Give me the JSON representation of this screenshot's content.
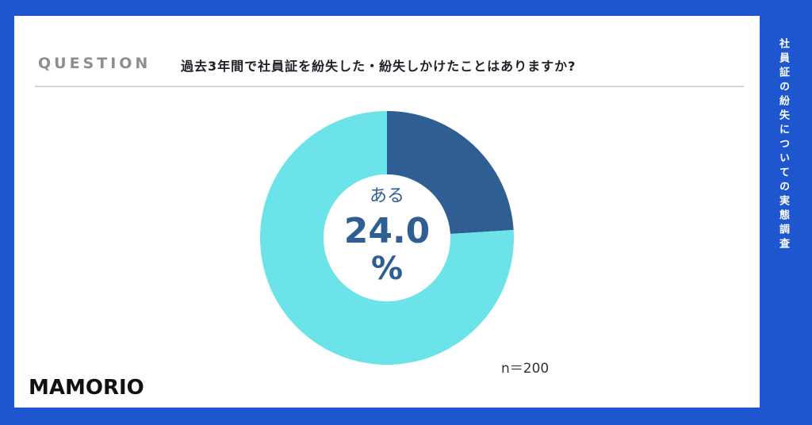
{
  "header": {
    "question_label": "QUESTION",
    "question_text": "過去3年間で社員証を紛失した・紛失しかけたことはありますか?"
  },
  "side_title": "社員証の紛失についての実態調査",
  "brand": "MAMORIO",
  "sample": "n＝200",
  "center": {
    "category": "ある",
    "value": "24.0",
    "unit": "%"
  },
  "colors": {
    "background": "#1e56d0",
    "slice_yes": "#2f5e93",
    "slice_no": "#6be3e8"
  },
  "chart_data": {
    "type": "pie",
    "donut": true,
    "categories": [
      "ある",
      ""
    ],
    "values": [
      24.0,
      76.0
    ]
  }
}
